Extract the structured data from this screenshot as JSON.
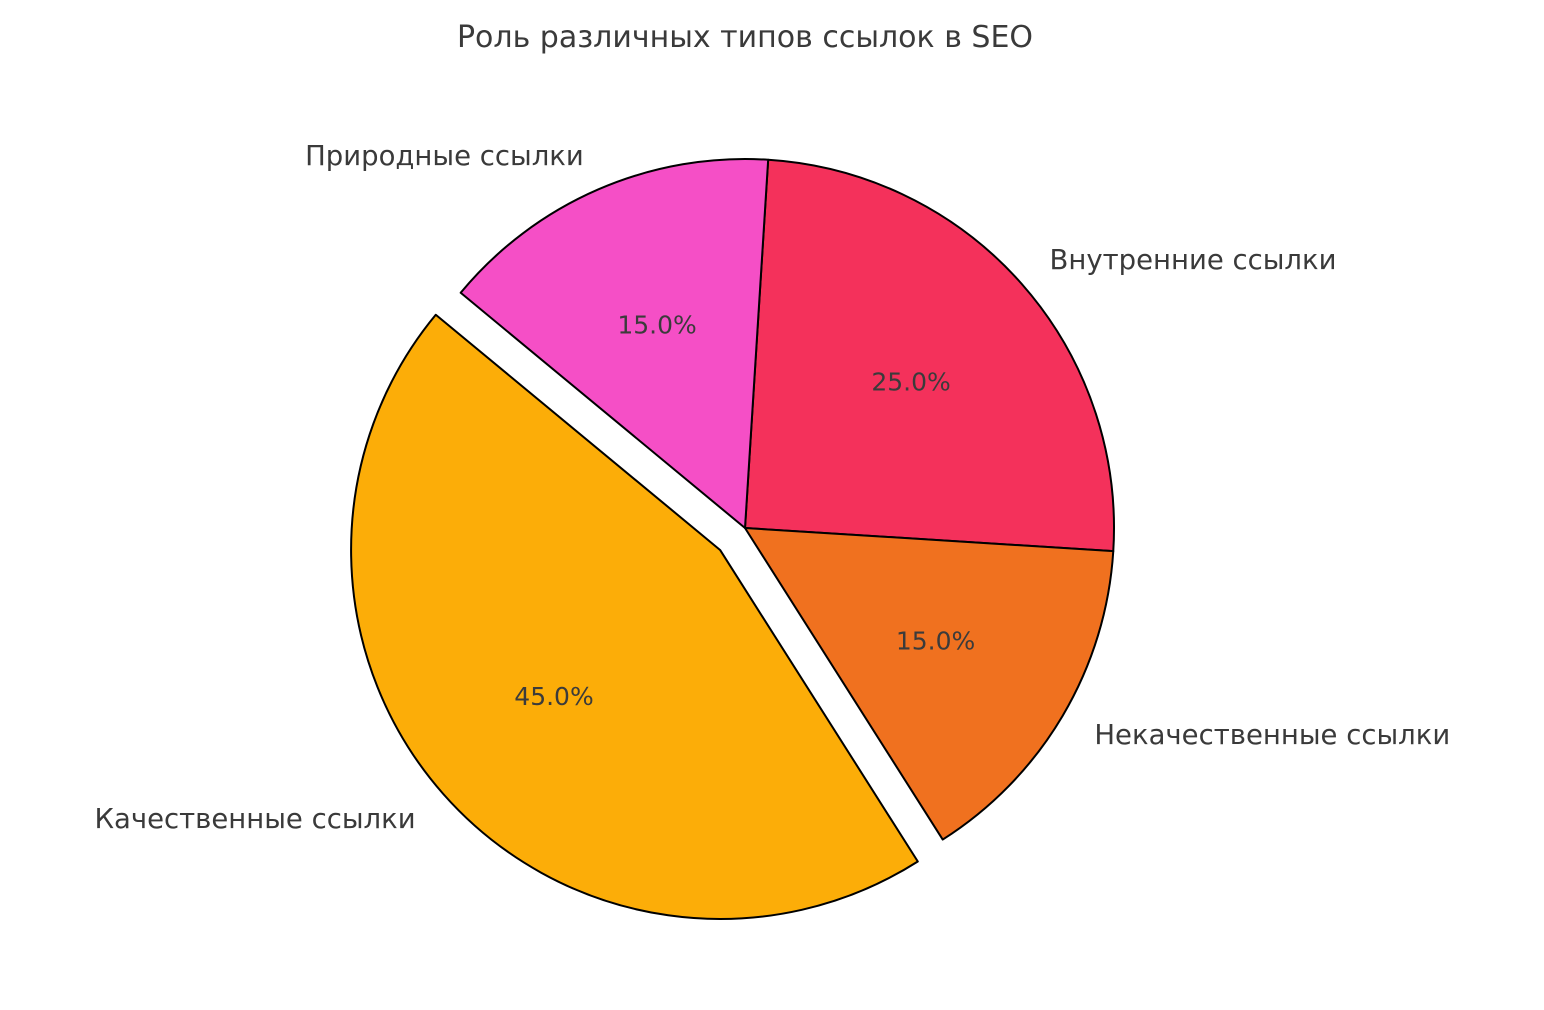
{
  "chart_data": {
    "type": "pie",
    "title": "Роль различных типов ссылок в SEO",
    "legend_position": "none",
    "axes": "none",
    "background_color": "#ffffff",
    "text_color": "#3a3a3a",
    "edge_color": "#000000",
    "start_angle_deg": 86.4,
    "direction": "clockwise",
    "label_distance": 1.1,
    "pct_distance": 0.6,
    "slices": [
      {
        "label": "Внутренние ссылки",
        "value": 25.0,
        "pct_label": "25.0%",
        "color": "#F4315B",
        "explode": 0
      },
      {
        "label": "Некачественные ссылки",
        "value": 15.0,
        "pct_label": "15.0%",
        "color": "#F0711F",
        "explode": 0
      },
      {
        "label": "Качественные ссылки",
        "value": 45.0,
        "pct_label": "45.0%",
        "color": "#FCAD08",
        "explode": 0.09
      },
      {
        "label": "Природные ссылки",
        "value": 15.0,
        "pct_label": "15.0%",
        "color": "#F54FC6",
        "explode": 0
      }
    ]
  }
}
